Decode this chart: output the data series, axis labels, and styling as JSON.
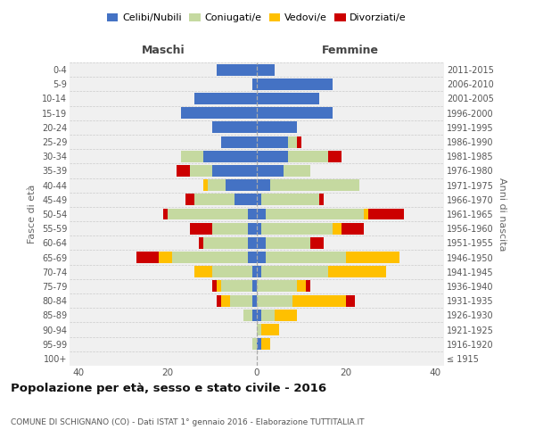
{
  "age_groups": [
    "100+",
    "95-99",
    "90-94",
    "85-89",
    "80-84",
    "75-79",
    "70-74",
    "65-69",
    "60-64",
    "55-59",
    "50-54",
    "45-49",
    "40-44",
    "35-39",
    "30-34",
    "25-29",
    "20-24",
    "15-19",
    "10-14",
    "5-9",
    "0-4"
  ],
  "birth_years": [
    "≤ 1915",
    "1916-1920",
    "1921-1925",
    "1926-1930",
    "1931-1935",
    "1936-1940",
    "1941-1945",
    "1946-1950",
    "1951-1955",
    "1956-1960",
    "1961-1965",
    "1966-1970",
    "1971-1975",
    "1976-1980",
    "1981-1985",
    "1986-1990",
    "1991-1995",
    "1996-2000",
    "2001-2005",
    "2006-2010",
    "2011-2015"
  ],
  "male_celibe": [
    0,
    0,
    0,
    1,
    1,
    1,
    1,
    2,
    2,
    2,
    2,
    5,
    7,
    10,
    12,
    8,
    10,
    17,
    14,
    1,
    9
  ],
  "male_coniugato": [
    0,
    1,
    0,
    2,
    5,
    7,
    9,
    17,
    10,
    8,
    18,
    9,
    4,
    5,
    5,
    0,
    0,
    0,
    0,
    0,
    0
  ],
  "male_vedovo": [
    0,
    0,
    0,
    0,
    2,
    1,
    4,
    3,
    0,
    0,
    0,
    0,
    1,
    0,
    0,
    0,
    0,
    0,
    0,
    0,
    0
  ],
  "male_divorziato": [
    0,
    0,
    0,
    0,
    1,
    1,
    0,
    5,
    1,
    5,
    1,
    2,
    0,
    3,
    0,
    0,
    0,
    0,
    0,
    0,
    0
  ],
  "female_nubile": [
    0,
    1,
    0,
    1,
    0,
    0,
    1,
    2,
    2,
    1,
    2,
    1,
    3,
    6,
    7,
    7,
    9,
    17,
    14,
    17,
    4
  ],
  "female_coniugata": [
    0,
    0,
    1,
    3,
    8,
    9,
    15,
    18,
    10,
    16,
    22,
    13,
    20,
    6,
    9,
    2,
    0,
    0,
    0,
    0,
    0
  ],
  "female_vedova": [
    0,
    2,
    4,
    5,
    12,
    2,
    13,
    12,
    0,
    2,
    1,
    0,
    0,
    0,
    0,
    0,
    0,
    0,
    0,
    0,
    0
  ],
  "female_divorziata": [
    0,
    0,
    0,
    0,
    2,
    1,
    0,
    0,
    3,
    5,
    8,
    1,
    0,
    0,
    3,
    1,
    0,
    0,
    0,
    0,
    0
  ],
  "color_celibe": "#4472C4",
  "color_coniugato": "#c5d9a0",
  "color_vedovo": "#ffc000",
  "color_divorziato": "#cc0000",
  "xlim": 42,
  "title": "Popolazione per età, sesso e stato civile - 2016",
  "subtitle": "COMUNE DI SCHIGNANO (CO) - Dati ISTAT 1° gennaio 2016 - Elaborazione TUTTITALIA.IT",
  "ylabel_left": "Fasce di età",
  "ylabel_right": "Anni di nascita",
  "label_maschi": "Maschi",
  "label_femmine": "Femmine",
  "legend_labels": [
    "Celibi/Nubili",
    "Coniugati/e",
    "Vedovi/e",
    "Divorziati/e"
  ],
  "bg_fig": "#ffffff",
  "bg_plot": "#f0f0f0",
  "grid_color": "#cccccc"
}
